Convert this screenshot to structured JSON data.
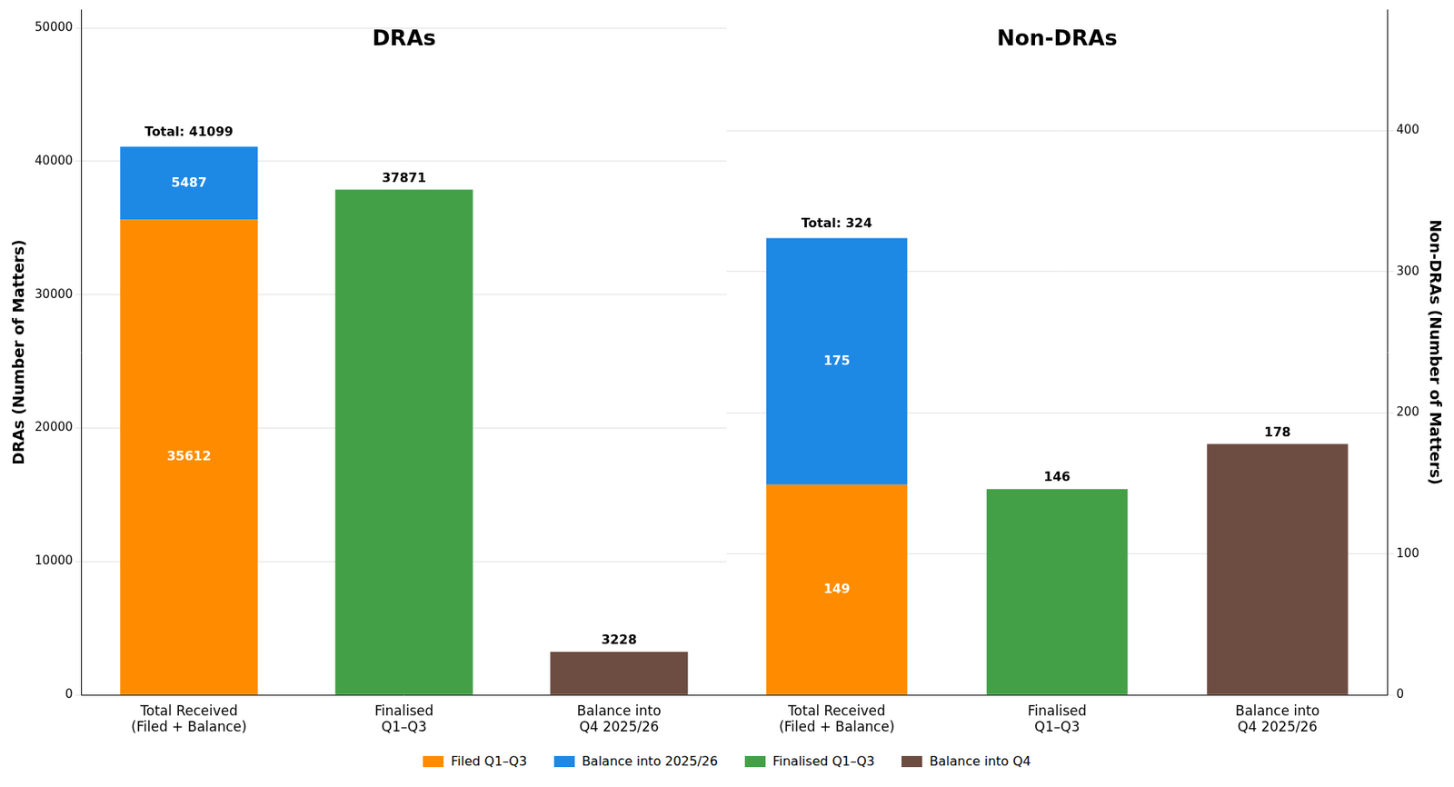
{
  "chart_data": [
    {
      "type": "bar",
      "title": "DRAs",
      "categories": [
        "Total Received\n(Filed + Balance)",
        "Finalised\nQ1–Q3",
        "Balance into\nQ4 2025/26"
      ],
      "stacked": true,
      "data_labels": true,
      "grid": true,
      "legend": "bottom",
      "ylabel": "DRAs (Number of Matters)",
      "ylim": [
        0,
        51374
      ],
      "yticks": [
        0,
        10000,
        20000,
        30000,
        40000,
        50000
      ],
      "series": [
        {
          "name": "Filed Q1–Q3",
          "color": "#ff8c00",
          "values": [
            35612,
            null,
            null
          ]
        },
        {
          "name": "Balance into 2025/26",
          "color": "#1e88e5",
          "values": [
            5487,
            null,
            null
          ]
        },
        {
          "name": "Finalised Q1–Q3",
          "color": "#43a047",
          "values": [
            null,
            37871,
            null
          ]
        },
        {
          "name": "Balance into Q4",
          "color": "#6d4c41",
          "values": [
            null,
            null,
            3228
          ]
        }
      ],
      "annotations": [
        {
          "text": "Total: 41099",
          "category": "Total Received\n(Filed + Balance)",
          "y": 41099
        }
      ]
    },
    {
      "type": "bar",
      "title": "Non-DRAs",
      "categories": [
        "Total Received\n(Filed + Balance)",
        "Finalised\nQ1–Q3",
        "Balance into\nQ4 2025/26"
      ],
      "stacked": true,
      "data_labels": true,
      "grid": true,
      "legend": "bottom",
      "y2label": "Non-DRAs (Number of Matters)",
      "y2lim": [
        0,
        486
      ],
      "y2ticks": [
        0,
        100,
        200,
        300,
        400
      ],
      "series": [
        {
          "name": "Filed Q1–Q3",
          "color": "#ff8c00",
          "axis": "y2",
          "values": [
            149,
            null,
            null
          ]
        },
        {
          "name": "Balance into 2025/26",
          "color": "#1e88e5",
          "axis": "y2",
          "values": [
            175,
            null,
            null
          ]
        },
        {
          "name": "Finalised Q1–Q3",
          "color": "#43a047",
          "axis": "y2",
          "values": [
            null,
            146,
            null
          ]
        },
        {
          "name": "Balance into Q4",
          "color": "#6d4c41",
          "axis": "y2",
          "values": [
            null,
            null,
            178
          ]
        }
      ],
      "annotations": [
        {
          "text": "Total: 324",
          "category": "Total Received\n(Filed + Balance)",
          "y": 324
        }
      ]
    }
  ]
}
